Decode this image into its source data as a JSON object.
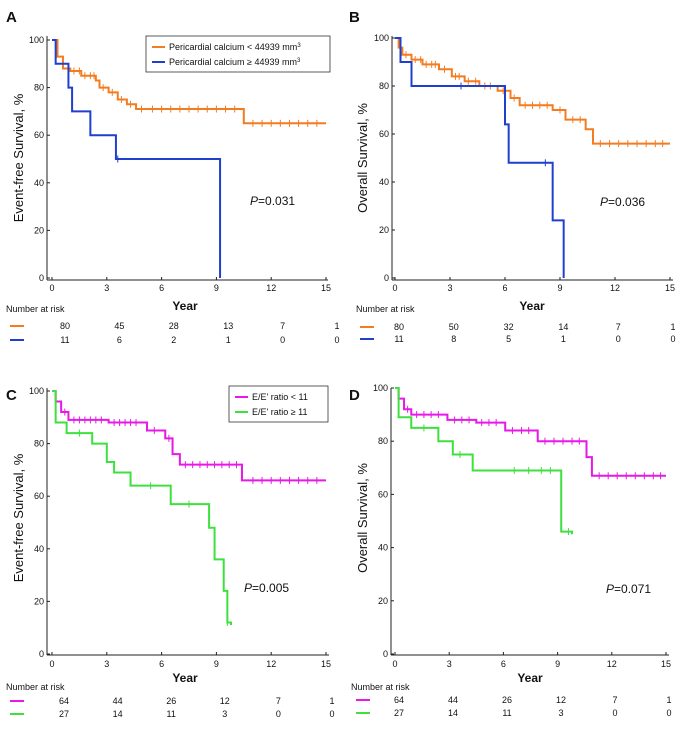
{
  "chart_data": [
    {
      "id": "A",
      "type": "line",
      "panel_label": "A",
      "ylabel": "Event-free Survival, %",
      "xlabel": "Year",
      "xlim": [
        0,
        15
      ],
      "ylim": [
        0,
        100
      ],
      "xticks": [
        0,
        3,
        6,
        9,
        12,
        15
      ],
      "yticks": [
        0,
        20,
        40,
        60,
        80,
        100
      ],
      "p_prefix": "P",
      "p_value": "=0.031",
      "legend": true,
      "risk_title": "Number at risk",
      "series": [
        {
          "name": "Pericardial calcium < 44939 mm³",
          "legend_text": "Pericardial calcium < 44939 mm",
          "legend_sup": "3",
          "color": "#f47c20",
          "risk": [
            "80",
            "45",
            "28",
            "13",
            "7",
            "1"
          ],
          "steps": [
            [
              0,
              100
            ],
            [
              0.3,
              93
            ],
            [
              0.6,
              88
            ],
            [
              1,
              87
            ],
            [
              1.6,
              85
            ],
            [
              2.4,
              83
            ],
            [
              2.6,
              80
            ],
            [
              3.1,
              78
            ],
            [
              3.6,
              75
            ],
            [
              4.1,
              73
            ],
            [
              4.6,
              71
            ],
            [
              10.5,
              65
            ],
            [
              15,
              65
            ]
          ],
          "censors": [
            0.9,
            1.2,
            1.5,
            1.8,
            2.1,
            2.3,
            2.8,
            3.3,
            3.8,
            4.3,
            4.9,
            5.5,
            6,
            6.5,
            7,
            7.5,
            8,
            8.5,
            9,
            9.5,
            10,
            11,
            11.5,
            12,
            12.5,
            13,
            13.5,
            14,
            14.5
          ]
        },
        {
          "name": "Pericardial calcium ≥ 44939 mm³",
          "legend_text": "Pericardial calcium ≥ 44939 mm",
          "legend_sup": "3",
          "color": "#1f3fcf",
          "risk": [
            "11",
            "6",
            "2",
            "1",
            "0",
            "0"
          ],
          "steps": [
            [
              0,
              100
            ],
            [
              0.2,
              90
            ],
            [
              0.9,
              80
            ],
            [
              1.1,
              70
            ],
            [
              2.1,
              60
            ],
            [
              3.5,
              50
            ],
            [
              9.2,
              0
            ]
          ],
          "censors": [
            3.6
          ]
        }
      ]
    },
    {
      "id": "B",
      "type": "line",
      "panel_label": "B",
      "ylabel": "Overall Survival, %",
      "xlabel": "Year",
      "xlim": [
        0,
        15
      ],
      "ylim": [
        0,
        100
      ],
      "xticks": [
        0,
        3,
        6,
        9,
        12,
        15
      ],
      "yticks": [
        0,
        20,
        40,
        60,
        80,
        100
      ],
      "p_prefix": "P",
      "p_value": "=0.036",
      "legend": false,
      "risk_title": "Number at risk",
      "series": [
        {
          "name": "Pericardial calcium < 44939 mm³",
          "color": "#f47c20",
          "risk": [
            "80",
            "50",
            "32",
            "14",
            "7",
            "1"
          ],
          "steps": [
            [
              0,
              100
            ],
            [
              0.2,
              96
            ],
            [
              0.4,
              93
            ],
            [
              0.9,
              91
            ],
            [
              1.5,
              89
            ],
            [
              2.4,
              87
            ],
            [
              3.1,
              84
            ],
            [
              3.8,
              82
            ],
            [
              4.6,
              80
            ],
            [
              5.6,
              78
            ],
            [
              6.3,
              75
            ],
            [
              6.8,
              72
            ],
            [
              8.6,
              70
            ],
            [
              9.3,
              66
            ],
            [
              10.4,
              62
            ],
            [
              10.8,
              56
            ],
            [
              15,
              56
            ]
          ],
          "censors": [
            0.6,
            1.1,
            1.4,
            1.7,
            2,
            2.2,
            2.7,
            3.3,
            3.5,
            4,
            4.4,
            4.9,
            5.2,
            5.9,
            6.5,
            7.1,
            7.5,
            7.9,
            8.3,
            9,
            9.7,
            10.1,
            11.2,
            11.7,
            12.2,
            12.7,
            13.2,
            13.7,
            14.2,
            14.6
          ]
        },
        {
          "name": "Pericardial calcium ≥ 44939 mm³",
          "color": "#1f3fcf",
          "risk": [
            "11",
            "8",
            "5",
            "1",
            "0",
            "0"
          ],
          "steps": [
            [
              0,
              100
            ],
            [
              0.3,
              90
            ],
            [
              0.9,
              80
            ],
            [
              6,
              64
            ],
            [
              6.2,
              48
            ],
            [
              8.6,
              24
            ],
            [
              9.2,
              0
            ]
          ],
          "censors": [
            3.6,
            8.2
          ]
        }
      ]
    },
    {
      "id": "C",
      "type": "line",
      "panel_label": "C",
      "ylabel": "Event-free Survival, %",
      "xlabel": "Year",
      "xlim": [
        0,
        15
      ],
      "ylim": [
        0,
        100
      ],
      "xticks": [
        0,
        3,
        6,
        9,
        12,
        15
      ],
      "yticks": [
        0,
        20,
        40,
        60,
        80,
        100
      ],
      "p_prefix": "P",
      "p_value": "=0.005",
      "legend": true,
      "risk_title": "Number at risk",
      "series": [
        {
          "name": "E/E' ratio < 11",
          "legend_text": "E/E' ratio < 11",
          "legend_sup": "",
          "color": "#e619e6",
          "risk": [
            "64",
            "44",
            "26",
            "12",
            "7",
            "1"
          ],
          "steps": [
            [
              0,
              100
            ],
            [
              0.2,
              96
            ],
            [
              0.5,
              92
            ],
            [
              0.9,
              89
            ],
            [
              3.1,
              88
            ],
            [
              5.2,
              85
            ],
            [
              6.2,
              82
            ],
            [
              6.6,
              76
            ],
            [
              7,
              72
            ],
            [
              10.4,
              66
            ],
            [
              15,
              66
            ]
          ],
          "censors": [
            0.7,
            1.2,
            1.5,
            1.8,
            2.1,
            2.4,
            2.7,
            3.4,
            3.7,
            4,
            4.3,
            4.6,
            5.6,
            6.4,
            7.3,
            7.7,
            8.1,
            8.5,
            8.9,
            9.3,
            9.7,
            10.1,
            11,
            11.5,
            12,
            12.5,
            13,
            13.5,
            14,
            14.5
          ]
        },
        {
          "name": "E/E' ratio ≥ 11",
          "legend_text": "E/E' ratio ≥ 11",
          "legend_sup": "",
          "color": "#3ee03e",
          "risk": [
            "27",
            "14",
            "11",
            "3",
            "0",
            "0"
          ],
          "steps": [
            [
              0,
              100
            ],
            [
              0.2,
              88
            ],
            [
              0.8,
              84
            ],
            [
              2.2,
              80
            ],
            [
              3,
              73
            ],
            [
              3.4,
              69
            ],
            [
              4.3,
              64
            ],
            [
              6.5,
              57
            ],
            [
              8.6,
              48
            ],
            [
              8.9,
              36
            ],
            [
              9.4,
              24
            ],
            [
              9.6,
              12
            ],
            [
              9.8,
              11
            ]
          ],
          "censors": [
            1.5,
            5.4,
            7.5,
            9.6
          ]
        }
      ]
    },
    {
      "id": "D",
      "type": "line",
      "panel_label": "D",
      "ylabel": "Overall Survival, %",
      "xlabel": "Year",
      "xlim": [
        0,
        15
      ],
      "ylim": [
        0,
        100
      ],
      "xticks": [
        0,
        3,
        6,
        9,
        12,
        15
      ],
      "yticks": [
        0,
        20,
        40,
        60,
        80,
        100
      ],
      "p_prefix": "P",
      "p_value": "=0.071",
      "legend": false,
      "risk_title": "Number at risk",
      "series": [
        {
          "name": "E/E' ratio < 11",
          "color": "#e619e6",
          "risk": [
            "64",
            "44",
            "26",
            "12",
            "7",
            "1"
          ],
          "steps": [
            [
              0,
              100
            ],
            [
              0.2,
              96
            ],
            [
              0.5,
              92
            ],
            [
              0.9,
              90
            ],
            [
              2.9,
              88
            ],
            [
              4.5,
              87
            ],
            [
              6.1,
              84
            ],
            [
              7.9,
              80
            ],
            [
              10.6,
              74
            ],
            [
              10.9,
              67
            ],
            [
              15,
              67
            ]
          ],
          "censors": [
            0.7,
            1.2,
            1.6,
            2,
            2.4,
            3.3,
            3.7,
            4.1,
            4.8,
            5.2,
            5.6,
            6.5,
            7,
            7.4,
            8.3,
            8.8,
            9.3,
            9.8,
            10.2,
            11.3,
            11.8,
            12.3,
            12.8,
            13.3,
            13.8,
            14.3,
            14.7
          ]
        },
        {
          "name": "E/E' ratio ≥ 11",
          "color": "#3ee03e",
          "risk": [
            "27",
            "14",
            "11",
            "3",
            "0",
            "0"
          ],
          "steps": [
            [
              0,
              100
            ],
            [
              0.2,
              89
            ],
            [
              0.9,
              85
            ],
            [
              2.4,
              80
            ],
            [
              3.2,
              75
            ],
            [
              4.3,
              69
            ],
            [
              9.2,
              46
            ],
            [
              9.8,
              45
            ]
          ],
          "censors": [
            1.6,
            3.6,
            6.6,
            7.4,
            8.1,
            8.6,
            9.6
          ]
        }
      ]
    }
  ]
}
